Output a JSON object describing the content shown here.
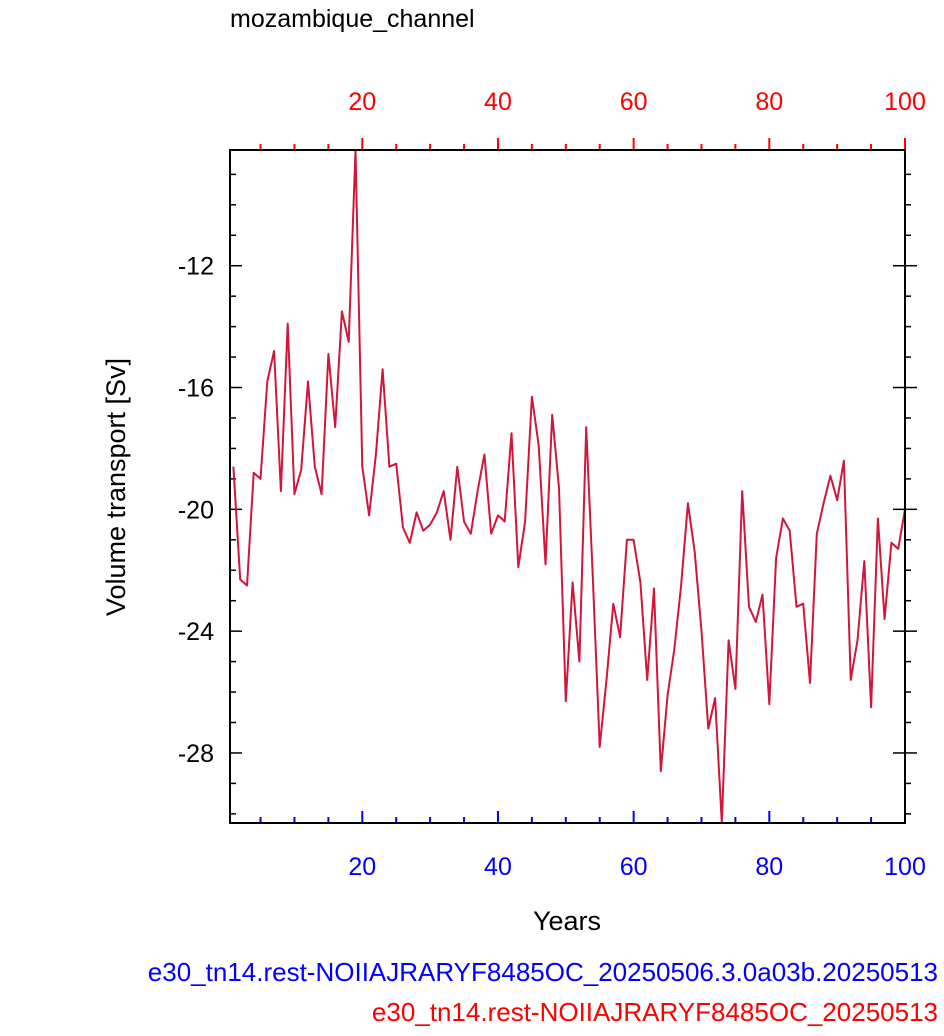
{
  "chart_data": {
    "type": "line",
    "title": "mozambique_channel",
    "xlabel": "Years",
    "ylabel": "Volume transport [Sv]",
    "xlim": [
      0.5,
      100
    ],
    "ylim": [
      -30.3,
      -8.2
    ],
    "x_ticks_bottom": [
      20,
      40,
      60,
      80,
      100
    ],
    "x_ticks_top": [
      20,
      40,
      60,
      80,
      100
    ],
    "y_ticks": [
      -12,
      -16,
      -20,
      -24,
      -28
    ],
    "bottom_axis_color": "#0000ff",
    "top_axis_color": "#ff0000",
    "line_color": "#d1163c",
    "legend_labels": [
      {
        "text": "e30_tn14.rest-NOIIAJRARYF8485OC_20250506.3.0a03b.20250513",
        "color": "#0000ff"
      },
      {
        "text": "e30_tn14.rest-NOIIAJRARYF8485OC_20250513",
        "color": "#ff0000"
      }
    ],
    "series": [
      {
        "x": [
          1,
          2,
          3,
          4,
          5,
          6,
          7,
          8,
          9,
          10,
          11,
          12,
          13,
          14,
          15,
          16,
          17,
          18,
          19,
          20,
          21,
          22,
          23,
          24,
          25,
          26,
          27,
          28,
          29,
          30,
          31,
          32,
          33,
          34,
          35,
          36,
          37,
          38,
          39,
          40,
          41,
          42,
          43,
          44,
          45,
          46,
          47,
          48,
          49,
          50,
          51,
          52,
          53,
          54,
          55,
          56,
          57,
          58,
          59,
          60,
          61,
          62,
          63,
          64,
          65,
          66,
          67,
          68,
          69,
          70,
          71,
          72,
          73,
          74,
          75,
          76,
          77,
          78,
          79,
          80,
          81,
          82,
          83,
          84,
          85,
          86,
          87,
          88,
          89,
          90,
          91,
          92,
          93,
          94,
          95,
          96,
          97,
          98,
          99,
          100
        ],
        "y": [
          -18.6,
          -22.3,
          -22.5,
          -18.8,
          -19.0,
          -15.8,
          -14.8,
          -19.4,
          -13.9,
          -19.5,
          -18.7,
          -15.8,
          -18.6,
          -19.5,
          -14.9,
          -17.3,
          -13.5,
          -14.5,
          -8.2,
          -18.6,
          -20.2,
          -18.2,
          -15.4,
          -18.6,
          -18.5,
          -20.6,
          -21.1,
          -20.1,
          -20.7,
          -20.5,
          -20.1,
          -19.4,
          -21.0,
          -18.6,
          -20.4,
          -20.8,
          -19.4,
          -18.2,
          -20.8,
          -20.2,
          -20.4,
          -17.5,
          -21.9,
          -20.4,
          -16.3,
          -17.9,
          -21.8,
          -16.9,
          -19.3,
          -26.3,
          -22.4,
          -25.0,
          -17.3,
          -22.3,
          -27.8,
          -25.6,
          -23.1,
          -24.2,
          -21.0,
          -21.0,
          -22.4,
          -25.6,
          -22.6,
          -28.6,
          -26.1,
          -24.6,
          -22.5,
          -19.8,
          -21.4,
          -24.0,
          -27.2,
          -26.2,
          -30.3,
          -24.3,
          -25.9,
          -19.4,
          -23.2,
          -23.7,
          -22.8,
          -26.4,
          -21.6,
          -20.3,
          -20.7,
          -23.2,
          -23.1,
          -25.7,
          -20.8,
          -19.8,
          -18.9,
          -19.7,
          -18.4,
          -25.6,
          -24.3,
          -21.7,
          -26.5,
          -20.3,
          -23.6,
          -21.1,
          -21.3,
          -20.0
        ]
      }
    ]
  }
}
